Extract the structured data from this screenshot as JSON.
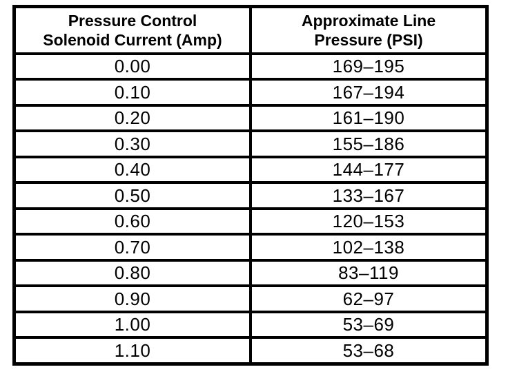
{
  "page": {
    "background_color": "#ffffff",
    "border_color": "#000000",
    "text_color": "#000000"
  },
  "table": {
    "columns": [
      {
        "header_line1": "Pressure Control",
        "header_line2": "Solenoid Current (Amp)"
      },
      {
        "header_line1": "Approximate Line",
        "header_line2": "Pressure (PSI)"
      }
    ],
    "rows": [
      {
        "current": "0.00",
        "pressure": "169–195"
      },
      {
        "current": "0.10",
        "pressure": "167–194"
      },
      {
        "current": "0.20",
        "pressure": "161–190"
      },
      {
        "current": "0.30",
        "pressure": "155–186"
      },
      {
        "current": "0.40",
        "pressure": "144–177"
      },
      {
        "current": "0.50",
        "pressure": "133–167"
      },
      {
        "current": "0.60",
        "pressure": "120–153"
      },
      {
        "current": "0.70",
        "pressure": "102–138"
      },
      {
        "current": "0.80",
        "pressure": "83–119"
      },
      {
        "current": "0.90",
        "pressure": "62–97"
      },
      {
        "current": "1.00",
        "pressure": "53–69"
      },
      {
        "current": "1.10",
        "pressure": "53–68"
      }
    ]
  },
  "chart_data": {
    "type": "table",
    "columns": [
      "Pressure Control Solenoid Current (Amp)",
      "Approximate Line Pressure (PSI)"
    ],
    "rows": [
      [
        "0.00",
        "169–195"
      ],
      [
        "0.10",
        "167–194"
      ],
      [
        "0.20",
        "161–190"
      ],
      [
        "0.30",
        "155–186"
      ],
      [
        "0.40",
        "144–177"
      ],
      [
        "0.50",
        "133–167"
      ],
      [
        "0.60",
        "120–153"
      ],
      [
        "0.70",
        "102–138"
      ],
      [
        "0.80",
        "83–119"
      ],
      [
        "0.90",
        "62–97"
      ],
      [
        "1.00",
        "53–69"
      ],
      [
        "1.10",
        "53–68"
      ]
    ]
  }
}
